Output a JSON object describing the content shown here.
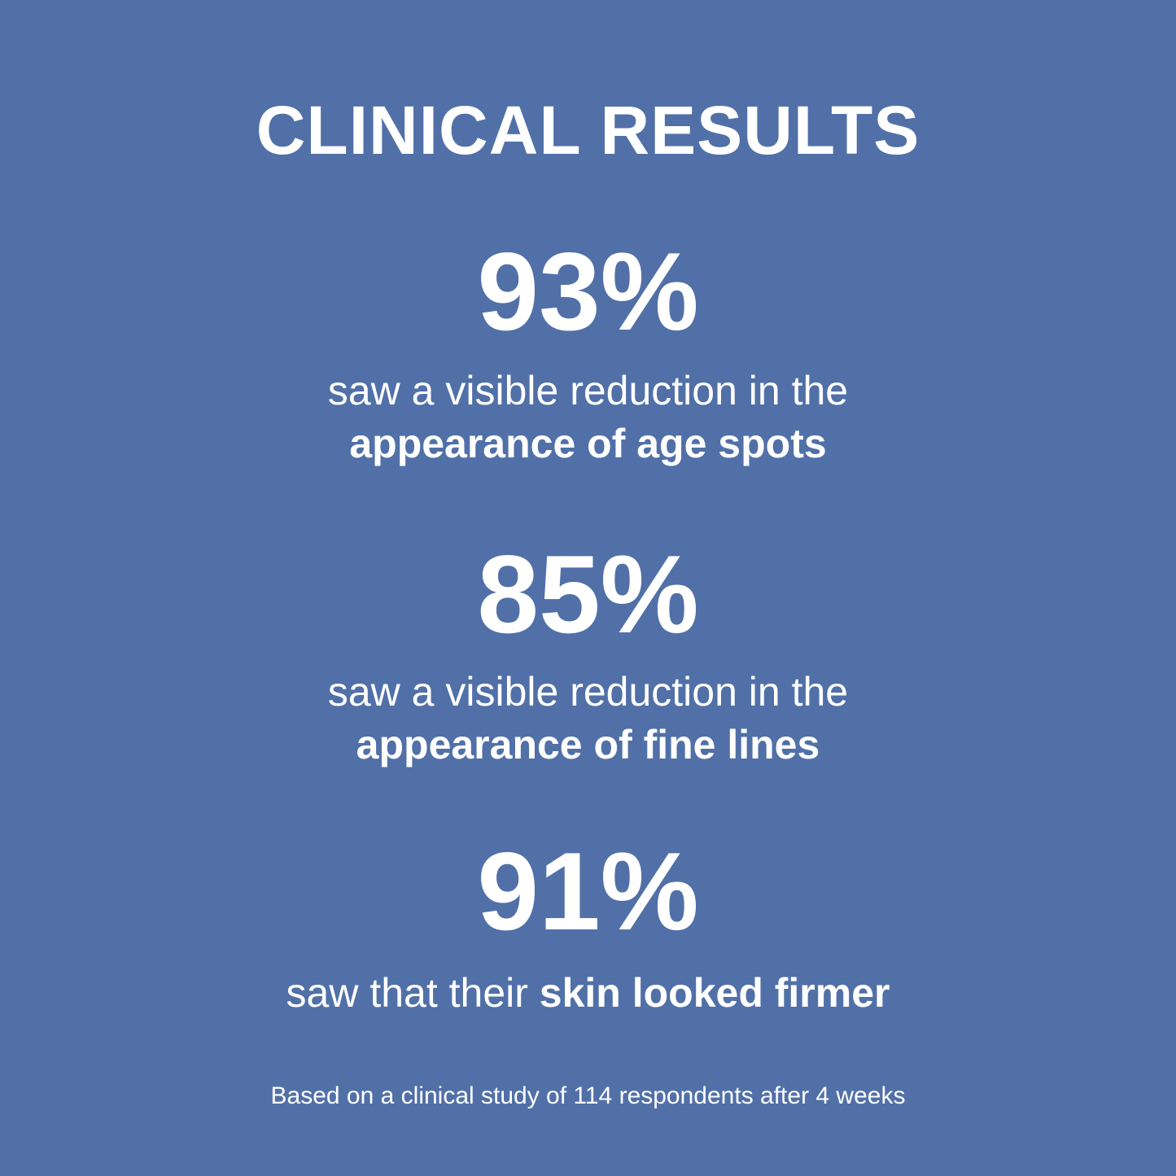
{
  "background_color": "#5170a8",
  "text_color": "#ffffff",
  "title": "CLINICAL RESULTS",
  "results": [
    {
      "stat": "93%",
      "line1": "saw a visible reduction in the",
      "line2_bold": "appearance of age spots"
    },
    {
      "stat": "85%",
      "line1": "saw a visible reduction in the",
      "line2_bold": "appearance of fine lines"
    },
    {
      "stat": "91%",
      "line1_regular": "saw that their ",
      "line1_bold": "skin looked firmer"
    }
  ],
  "footnote": "Based on a clinical study of 114 respondents after 4 weeks"
}
